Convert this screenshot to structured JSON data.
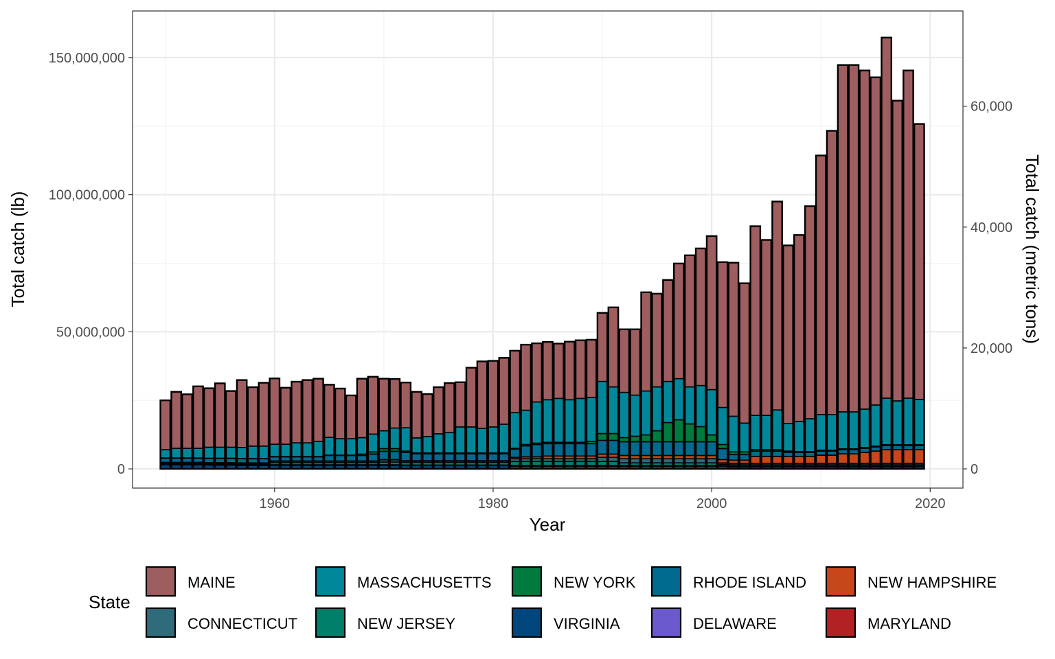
{
  "chart_data": {
    "type": "bar",
    "stacked": true,
    "xlabel": "Year",
    "ylabel": "Total catch (lb)",
    "y2label": "Total catch (metric tons)",
    "xlim": [
      1947,
      2023
    ],
    "ylim": [
      -7000000,
      167000000
    ],
    "xticks": [
      1960,
      1980,
      2000,
      2020
    ],
    "xtick_labels": [
      "1960",
      "1980",
      "2000",
      "2020"
    ],
    "yticks": [
      0,
      50000000,
      100000000,
      150000000
    ],
    "ytick_labels": [
      "0",
      "50,000,000",
      "100,000,000",
      "150,000,000"
    ],
    "y2ticks": [
      0,
      20000,
      40000,
      60000
    ],
    "y2tick_labels": [
      "0",
      "20,000",
      "40,000",
      "60,000"
    ],
    "grid": true,
    "legend": {
      "title": "State",
      "position": "bottom"
    },
    "x": [
      1950,
      1951,
      1952,
      1953,
      1954,
      1955,
      1956,
      1957,
      1958,
      1959,
      1960,
      1961,
      1962,
      1963,
      1964,
      1965,
      1966,
      1967,
      1968,
      1969,
      1970,
      1971,
      1972,
      1973,
      1974,
      1975,
      1976,
      1977,
      1978,
      1979,
      1980,
      1981,
      1982,
      1983,
      1984,
      1985,
      1986,
      1987,
      1988,
      1989,
      1990,
      1991,
      1992,
      1993,
      1994,
      1995,
      1996,
      1997,
      1998,
      1999,
      2000,
      2001,
      2002,
      2003,
      2004,
      2005,
      2006,
      2007,
      2008,
      2009,
      2010,
      2011,
      2012,
      2013,
      2014,
      2015,
      2016,
      2017,
      2018,
      2019
    ],
    "series": [
      {
        "name": "VIRGINIA",
        "color": "#00457c",
        "values": [
          1.5,
          1.5,
          1.5,
          1.5,
          1.4,
          1.4,
          1.4,
          1.3,
          1.3,
          1.3,
          1.3,
          1.3,
          1.3,
          1.3,
          1.3,
          1.3,
          1.3,
          1.3,
          1.3,
          1.3,
          1.3,
          1.3,
          1.2,
          1.2,
          1.2,
          1.2,
          1.2,
          1.2,
          1.2,
          1.2,
          1.2,
          1.2,
          1.0,
          1.0,
          1.0,
          1.0,
          1.0,
          1.0,
          1.0,
          1.0,
          1.0,
          1.0,
          1.0,
          1.0,
          1.0,
          1.0,
          1.0,
          1.0,
          1.0,
          1.0,
          1.0,
          1.0,
          0.8,
          0.8,
          0.8,
          0.8,
          0.8,
          0.8,
          0.8,
          0.8,
          0.8,
          0.8,
          0.8,
          0.8,
          0.8,
          0.8,
          0.8,
          0.8,
          0.8,
          0.8
        ]
      },
      {
        "name": "DELAWARE",
        "color": "#6a5acd",
        "values": [
          0.1,
          0.1,
          0.1,
          0.1,
          0.1,
          0.1,
          0.1,
          0.1,
          0.1,
          0.1,
          0.1,
          0.1,
          0.1,
          0.1,
          0.1,
          0.1,
          0.1,
          0.1,
          0.1,
          0.1,
          0.1,
          0.1,
          0.1,
          0.1,
          0.1,
          0.1,
          0.1,
          0.1,
          0.1,
          0.1,
          0.1,
          0.1,
          0.1,
          0.1,
          0.1,
          0.1,
          0.1,
          0.1,
          0.1,
          0.1,
          0.1,
          0.1,
          0.1,
          0.1,
          0.1,
          0.1,
          0.1,
          0.1,
          0.1,
          0.1,
          0.1,
          0.1,
          0.1,
          0.1,
          0.1,
          0.1,
          0.1,
          0.1,
          0.1,
          0.1,
          0.1,
          0.1,
          0.1,
          0.1,
          0.1,
          0.1,
          0.1,
          0.1,
          0.1,
          0.1
        ]
      },
      {
        "name": "MARYLAND",
        "color": "#b22222",
        "values": [
          0.1,
          0.1,
          0.1,
          0.1,
          0.1,
          0.1,
          0.1,
          0.1,
          0.1,
          0.1,
          0.1,
          0.1,
          0.1,
          0.1,
          0.1,
          0.1,
          0.1,
          0.1,
          0.1,
          0.1,
          0.1,
          0.1,
          0.1,
          0.1,
          0.1,
          0.1,
          0.1,
          0.1,
          0.1,
          0.1,
          0.1,
          0.1,
          0.1,
          0.1,
          0.1,
          0.1,
          0.1,
          0.1,
          0.1,
          0.1,
          0.1,
          0.1,
          0.1,
          0.1,
          0.1,
          0.1,
          0.1,
          0.1,
          0.1,
          0.1,
          0.1,
          0.1,
          0.1,
          0.1,
          0.1,
          0.1,
          0.1,
          0.1,
          0.1,
          0.1,
          0.1,
          0.1,
          0.1,
          0.1,
          0.1,
          0.1,
          0.1,
          0.1,
          0.1,
          0.1
        ]
      },
      {
        "name": "NEW JERSEY",
        "color": "#00806a",
        "values": [
          0.3,
          0.3,
          0.3,
          0.3,
          0.3,
          0.3,
          0.3,
          0.3,
          0.3,
          0.3,
          0.8,
          0.8,
          0.8,
          0.8,
          0.8,
          0.8,
          0.8,
          0.8,
          0.8,
          0.8,
          1.0,
          1.0,
          1.0,
          1.0,
          1.0,
          1.0,
          1.0,
          1.0,
          1.0,
          1.0,
          1.0,
          1.0,
          1.5,
          1.5,
          1.5,
          1.5,
          1.5,
          1.5,
          1.5,
          1.5,
          1.5,
          1.5,
          1.0,
          1.0,
          1.0,
          1.0,
          1.0,
          1.0,
          1.0,
          1.0,
          1.0,
          0.5,
          0.5,
          0.5,
          0.5,
          0.5,
          0.5,
          0.5,
          0.5,
          0.5,
          0.5,
          0.5,
          0.5,
          0.5,
          0.5,
          0.5,
          0.5,
          0.5,
          0.5,
          0.5
        ]
      },
      {
        "name": "CONNECTICUT",
        "color": "#2e6b7b",
        "values": [
          0.3,
          0.3,
          0.3,
          0.3,
          0.3,
          0.3,
          0.3,
          0.3,
          0.3,
          0.3,
          0.5,
          0.5,
          0.5,
          0.5,
          0.5,
          0.5,
          0.5,
          0.5,
          0.5,
          0.5,
          0.8,
          0.8,
          0.5,
          0.5,
          0.5,
          0.5,
          0.5,
          0.5,
          0.5,
          0.5,
          0.5,
          0.5,
          1.0,
          1.0,
          1.0,
          1.0,
          1.0,
          1.0,
          1.0,
          1.0,
          1.5,
          1.5,
          1.5,
          1.5,
          1.5,
          1.5,
          1.5,
          1.5,
          1.5,
          1.5,
          1.5,
          0.5,
          0.5,
          0.5,
          0.5,
          0.5,
          0.5,
          0.5,
          0.5,
          0.5,
          0.5,
          0.5,
          0.5,
          0.5,
          0.5,
          0.5,
          0.5,
          0.5,
          0.5,
          0.5
        ]
      },
      {
        "name": "NEW HAMPSHIRE",
        "color": "#c7461a",
        "values": [
          0.1,
          0.1,
          0.1,
          0.1,
          0.1,
          0.1,
          0.1,
          0.1,
          0.1,
          0.1,
          0.1,
          0.1,
          0.1,
          0.1,
          0.1,
          0.1,
          0.1,
          0.1,
          0.1,
          0.1,
          0.1,
          0.1,
          0.1,
          0.1,
          0.1,
          0.1,
          0.1,
          0.1,
          0.1,
          0.1,
          0.1,
          0.1,
          0.5,
          0.7,
          0.7,
          1.0,
          1.0,
          1.0,
          1.0,
          1.0,
          1.2,
          1.2,
          1.2,
          1.2,
          1.2,
          1.2,
          1.2,
          1.2,
          1.2,
          1.2,
          1.2,
          1.2,
          1.2,
          1.2,
          2.5,
          2.5,
          2.5,
          2.5,
          2.5,
          2.5,
          3.0,
          3.0,
          3.5,
          3.5,
          4.0,
          4.5,
          5.0,
          5.0,
          5.0,
          5.0
        ]
      },
      {
        "name": "RHODE ISLAND",
        "color": "#006b8f",
        "values": [
          1.5,
          1.5,
          1.5,
          1.5,
          1.5,
          1.5,
          1.5,
          1.5,
          1.5,
          1.5,
          1.5,
          1.5,
          1.5,
          1.5,
          1.5,
          2.0,
          2.0,
          2.0,
          2.0,
          2.5,
          3.0,
          3.0,
          3.0,
          2.5,
          2.5,
          2.5,
          2.5,
          2.5,
          2.5,
          2.5,
          2.5,
          2.5,
          3.0,
          4.0,
          4.5,
          4.5,
          4.5,
          4.5,
          4.5,
          4.5,
          5.0,
          5.0,
          5.0,
          5.0,
          5.0,
          5.0,
          5.0,
          5.0,
          5.0,
          5.0,
          5.0,
          4.0,
          2.0,
          2.0,
          2.0,
          2.0,
          2.0,
          1.5,
          1.5,
          1.5,
          1.5,
          1.5,
          1.5,
          1.5,
          1.5,
          1.5,
          1.5,
          1.5,
          1.5,
          1.5
        ]
      },
      {
        "name": "NEW YORK",
        "color": "#007a3d",
        "values": [
          0.1,
          0.1,
          0.1,
          0.1,
          0.1,
          0.1,
          0.1,
          0.1,
          0.1,
          0.1,
          0.1,
          0.1,
          0.1,
          0.1,
          0.1,
          0.1,
          0.1,
          0.1,
          0.5,
          0.8,
          1.0,
          1.0,
          0.5,
          0.3,
          0.3,
          0.3,
          0.3,
          0.3,
          0.3,
          0.3,
          0.3,
          0.3,
          0.3,
          0.5,
          0.5,
          0.5,
          0.5,
          0.5,
          0.5,
          0.8,
          2.5,
          2.5,
          1.5,
          2.0,
          2.5,
          4.0,
          7.0,
          8.0,
          6.5,
          5.5,
          2.5,
          1.5,
          1.0,
          1.0,
          0.5,
          0.5,
          0.5,
          0.5,
          0.3,
          0.3,
          0.3,
          0.3,
          0.3,
          0.3,
          0.3,
          0.3,
          0.3,
          0.3,
          0.3,
          0.3
        ]
      },
      {
        "name": "MASSACHUSETTS",
        "color": "#00889a",
        "values": [
          3.0,
          3.5,
          3.5,
          3.5,
          4.0,
          4.0,
          4.0,
          4.0,
          4.5,
          4.5,
          4.5,
          4.5,
          5.0,
          5.0,
          5.5,
          6.5,
          6.0,
          6.0,
          6.0,
          6.5,
          6.5,
          7.5,
          8.5,
          5.5,
          6.0,
          7.0,
          7.5,
          9.5,
          9.5,
          9.0,
          9.5,
          10.5,
          13.0,
          12.5,
          15.0,
          15.5,
          16.0,
          15.5,
          16.0,
          16.0,
          19.0,
          17.0,
          16.5,
          15.0,
          16.0,
          16.0,
          15.0,
          15.0,
          13.5,
          15.0,
          16.5,
          13.5,
          13.0,
          10.5,
          12.5,
          12.5,
          14.5,
          10.0,
          11.0,
          12.0,
          13.0,
          13.0,
          13.5,
          13.5,
          14.0,
          15.0,
          17.0,
          16.0,
          17.0,
          16.5
        ]
      },
      {
        "name": "MAINE",
        "color": "#9e5e60",
        "values": [
          18.0,
          20.6,
          19.7,
          22.6,
          21.5,
          23.3,
          20.5,
          24.6,
          21.5,
          23.1,
          24.0,
          20.6,
          22.3,
          22.9,
          22.9,
          19.2,
          18.3,
          15.8,
          21.5,
          20.9,
          19.0,
          17.9,
          16.5,
          16.8,
          15.5,
          17.0,
          18.0,
          16.3,
          21.6,
          24.4,
          24.1,
          24.2,
          22.6,
          23.9,
          21.4,
          21.1,
          20.0,
          21.2,
          21.2,
          21.1,
          25.0,
          29.0,
          23.0,
          24.0,
          36.0,
          34.0,
          37.0,
          42.0,
          48.0,
          50.0,
          56.0,
          53.0,
          56.0,
          51.0,
          69.0,
          64.0,
          76.0,
          65.0,
          68.0,
          77.5,
          94.5,
          103.5,
          126.5,
          126.5,
          123.5,
          119.5,
          131.5,
          109.5,
          119.5,
          100.5
        ]
      }
    ],
    "value_units": "million lb"
  }
}
